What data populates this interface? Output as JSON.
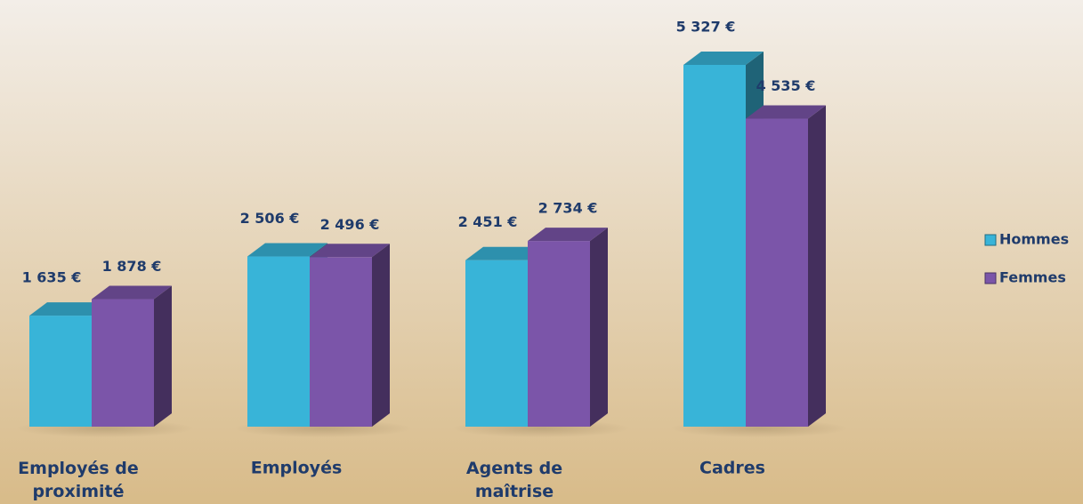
{
  "chart_data": {
    "type": "bar3d",
    "categories": [
      "Employés de proximité",
      "Employés",
      "Agents de maîtrise",
      "Cadres"
    ],
    "series": [
      {
        "name": "Hommes",
        "color": "#38b4d8",
        "values": [
          1635,
          2506,
          2451,
          5327
        ],
        "value_labels": [
          "1 635 €",
          "2 506 €",
          "2 451 €",
          "5 327 €"
        ]
      },
      {
        "name": "Femmes",
        "color": "#7b55a9",
        "values": [
          1878,
          2496,
          2734,
          4535
        ],
        "value_labels": [
          "1 878 €",
          "2 496 €",
          "2 734 €",
          "4 535 €"
        ]
      }
    ],
    "legend": "right"
  }
}
